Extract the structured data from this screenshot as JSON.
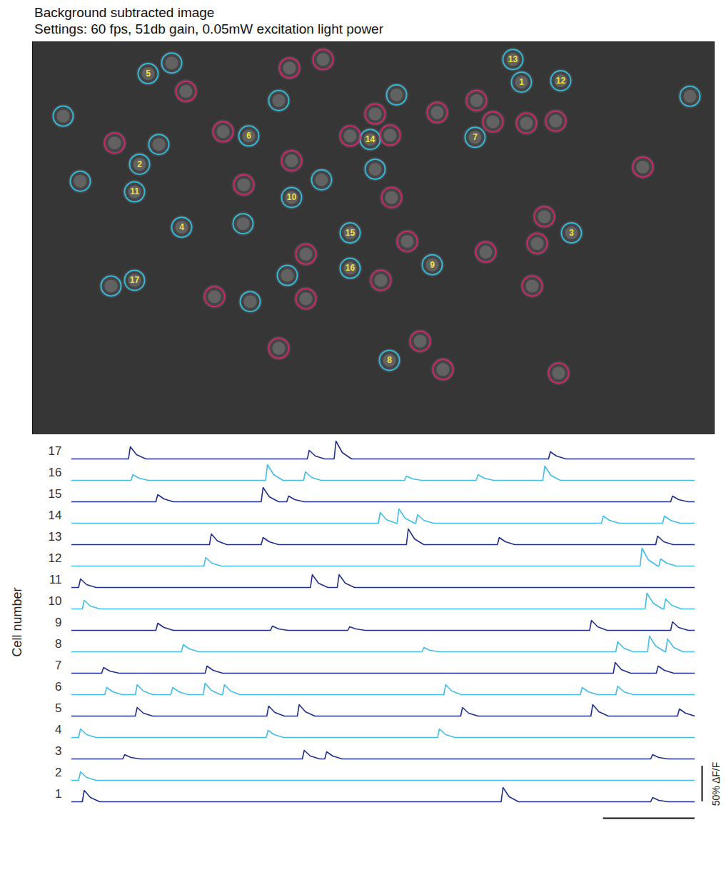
{
  "image": {
    "title": "Background subtracted image",
    "subtitle": "Settings: 60 fps, 51db gain, 0.05mW excitation light power",
    "xlim": [
      0,
      955
    ],
    "ylim": [
      0,
      555
    ],
    "roi_groups": [
      {
        "color": "#35b8d8",
        "x": [
          685,
          150,
          755,
          209,
          162,
          303,
          620,
          500,
          560,
          363,
          143,
          740,
          673,
          473,
          445,
          445,
          143,
          195,
          43,
          345,
          510,
          177,
          67,
          405,
          480,
          295,
          357,
          110,
          305,
          921
        ],
        "y": [
          57,
          173,
          270,
          262,
          45,
          133,
          135,
          450,
          315,
          220,
          212,
          55,
          25,
          138,
          270,
          320,
          337,
          30,
          105,
          83,
          75,
          145,
          197,
          195,
          180,
          257,
          330,
          345,
          367,
          77
        ],
        "labels": [
          "1",
          "2",
          "3",
          "4",
          "5",
          "6",
          "7",
          "8",
          "9",
          "10",
          "11",
          "12",
          "13",
          "14",
          "15",
          "16",
          "17",
          null,
          null,
          null,
          null,
          null,
          null,
          null,
          null,
          null,
          null,
          null,
          null,
          null
        ]
      },
      {
        "color": "#d0286c",
        "x": [
          215,
          360,
          407,
          267,
          115,
          445,
          480,
          501,
          567,
          622,
          645,
          692,
          733,
          855,
          363,
          296,
          503,
          717,
          707,
          635,
          525,
          383,
          488,
          383,
          255,
          700,
          345,
          543,
          575,
          737
        ],
        "y": [
          70,
          37,
          25,
          127,
          143,
          133,
          102,
          132,
          100,
          83,
          113,
          115,
          112,
          177,
          168,
          202,
          220,
          247,
          285,
          297,
          282,
          300,
          337,
          363,
          360,
          345,
          433,
          423,
          463,
          468
        ],
        "labels": [
          null,
          null,
          null,
          null,
          null,
          null,
          null,
          null,
          null,
          null,
          null,
          null,
          null,
          null,
          null,
          null,
          null,
          null,
          null,
          null,
          null,
          null,
          null,
          null,
          null,
          null,
          null,
          null,
          null,
          null
        ]
      }
    ]
  },
  "chart_data": {
    "type": "line",
    "ylabel": "Cell number",
    "xlim": [
      0,
      100
    ],
    "ylim": [
      -4,
      26
    ],
    "tick_labels": false,
    "scale_bars": {
      "x": {
        "from": 85.3,
        "to": 100
      },
      "y": {
        "value": 50,
        "label": "50% ΔF/F"
      }
    },
    "series": [
      {
        "name": "17",
        "color": "#1f2e8f",
        "x": [
          0,
          9.1,
          9.4,
          10.4,
          11.9,
          37.8,
          38.1,
          39.1,
          40.6,
          42.1,
          42.4,
          43.4,
          44.9,
          76.5,
          76.8,
          77.8,
          79.3,
          100
        ],
        "values": [
          0,
          0,
          17,
          6,
          0,
          0,
          12,
          4,
          0,
          0,
          25,
          9,
          0,
          0,
          10,
          4,
          0,
          0
        ]
      },
      {
        "name": "16",
        "color": "#40bde8",
        "x": [
          0,
          9.5,
          9.8,
          10.8,
          12.3,
          31.1,
          31.4,
          32.4,
          33.9,
          37.2,
          37.5,
          38.5,
          40.0,
          53.4,
          53.7,
          54.7,
          56.2,
          64.9,
          65.2,
          66.2,
          67.7,
          75.6,
          75.9,
          76.9,
          78.4,
          100
        ],
        "values": [
          0,
          0,
          8,
          3,
          0,
          0,
          22,
          8,
          0,
          0,
          12,
          4,
          0,
          0,
          6,
          2,
          0,
          0,
          8,
          3,
          0,
          0,
          20,
          7,
          0,
          0
        ]
      },
      {
        "name": "15",
        "color": "#1f2e8f",
        "x": [
          0,
          13.5,
          13.8,
          14.8,
          16.3,
          30.4,
          30.7,
          31.7,
          33.2,
          34.5,
          34.8,
          35.8,
          37.3,
          96.1,
          96.4,
          97.4,
          98.9,
          100
        ],
        "values": [
          0,
          0,
          10,
          4,
          0,
          0,
          20,
          7,
          0,
          0,
          8,
          3,
          0,
          0,
          8,
          3,
          0,
          0
        ]
      },
      {
        "name": "14",
        "color": "#40bde8",
        "x": [
          0,
          49.2,
          49.5,
          50.5,
          52.0,
          52.2,
          52.5,
          53.5,
          55.0,
          55.2,
          55.5,
          56.5,
          58.0,
          85.0,
          85.3,
          86.3,
          87.8,
          94.8,
          95.1,
          96.1,
          97.6,
          100
        ],
        "values": [
          0,
          0,
          15,
          5,
          0,
          0,
          20,
          7,
          0,
          0,
          12,
          4,
          0,
          0,
          10,
          4,
          0,
          0,
          10,
          4,
          0,
          0
        ]
      },
      {
        "name": "13",
        "color": "#1f2e8f",
        "x": [
          0,
          22.1,
          22.4,
          23.4,
          24.9,
          30.4,
          30.7,
          31.7,
          33.2,
          53.7,
          54.0,
          55.0,
          56.5,
          68.3,
          68.6,
          69.6,
          71.1,
          93.7,
          94.0,
          95.0,
          96.5,
          100
        ],
        "values": [
          0,
          0,
          15,
          5,
          0,
          0,
          10,
          4,
          0,
          0,
          22,
          8,
          0,
          0,
          10,
          4,
          0,
          0,
          12,
          4,
          0,
          0
        ]
      },
      {
        "name": "12",
        "color": "#40bde8",
        "x": [
          0,
          21.2,
          21.5,
          22.5,
          24.0,
          91.2,
          91.5,
          92.5,
          94.0,
          94.2,
          94.5,
          95.5,
          97.0,
          100
        ],
        "values": [
          0,
          0,
          12,
          4,
          0,
          0,
          25,
          9,
          0,
          0,
          10,
          4,
          0,
          0
        ]
      },
      {
        "name": "11",
        "color": "#1f2e8f",
        "x": [
          0,
          1.1,
          1.4,
          2.4,
          3.9,
          38.3,
          38.6,
          39.6,
          41.1,
          42.6,
          42.9,
          43.9,
          45.4,
          100
        ],
        "values": [
          0,
          0,
          12,
          4,
          0,
          0,
          18,
          6,
          0,
          0,
          18,
          6,
          0,
          0
        ]
      },
      {
        "name": "10",
        "color": "#40bde8",
        "x": [
          0,
          1.7,
          2.0,
          3.0,
          4.5,
          92.0,
          92.3,
          93.3,
          94.8,
          95.0,
          95.3,
          96.3,
          97.8,
          100
        ],
        "values": [
          0,
          0,
          12,
          4,
          0,
          0,
          22,
          8,
          0,
          0,
          14,
          5,
          0,
          0
        ]
      },
      {
        "name": "9",
        "color": "#1f2e8f",
        "x": [
          0,
          13.5,
          13.8,
          14.8,
          16.3,
          31.9,
          32.2,
          33.2,
          34.7,
          44.3,
          44.6,
          45.6,
          47.1,
          83.1,
          83.4,
          84.4,
          85.9,
          96.1,
          96.4,
          97.4,
          98.9,
          100
        ],
        "values": [
          0,
          0,
          10,
          4,
          0,
          0,
          6,
          2,
          0,
          0,
          5,
          2,
          0,
          0,
          14,
          5,
          0,
          0,
          12,
          4,
          0,
          0
        ]
      },
      {
        "name": "8",
        "color": "#40bde8",
        "x": [
          0,
          17.6,
          17.9,
          18.9,
          20.4,
          56.2,
          56.5,
          57.5,
          59.0,
          87.3,
          87.6,
          88.6,
          90.1,
          92.4,
          92.7,
          93.7,
          95.2,
          95.3,
          95.6,
          96.6,
          98.1,
          100
        ],
        "values": [
          0,
          0,
          10,
          4,
          0,
          0,
          6,
          2,
          0,
          0,
          14,
          5,
          0,
          0,
          22,
          8,
          0,
          0,
          18,
          6,
          0,
          0
        ]
      },
      {
        "name": "7",
        "color": "#1f2e8f",
        "x": [
          0,
          4.8,
          5.1,
          6.1,
          7.6,
          21.4,
          21.7,
          22.7,
          24.2,
          86.9,
          87.2,
          88.2,
          89.7,
          93.8,
          94.1,
          95.1,
          96.6,
          100
        ],
        "values": [
          0,
          0,
          8,
          3,
          0,
          0,
          10,
          4,
          0,
          0,
          15,
          5,
          0,
          0,
          10,
          4,
          0,
          0
        ]
      },
      {
        "name": "6",
        "color": "#40bde8",
        "x": [
          0,
          5.3,
          5.6,
          6.6,
          8.1,
          10.2,
          10.5,
          11.5,
          13.0,
          15.9,
          16.2,
          17.2,
          18.7,
          21.1,
          21.4,
          22.4,
          23.9,
          24.2,
          24.5,
          25.5,
          27.0,
          59.7,
          60.0,
          61.0,
          62.5,
          81.6,
          81.9,
          82.9,
          84.4,
          87.3,
          87.6,
          88.6,
          90.1,
          100
        ],
        "values": [
          0,
          0,
          10,
          4,
          0,
          0,
          14,
          5,
          0,
          0,
          10,
          4,
          0,
          0,
          16,
          6,
          0,
          0,
          14,
          5,
          0,
          0,
          14,
          5,
          0,
          0,
          10,
          4,
          0,
          0,
          12,
          4,
          0,
          0
        ]
      },
      {
        "name": "5",
        "color": "#1f2e8f",
        "x": [
          0,
          10.2,
          10.5,
          11.5,
          13.0,
          31.3,
          31.6,
          32.6,
          34.1,
          36.2,
          36.5,
          37.5,
          39.0,
          62.4,
          62.7,
          63.7,
          65.2,
          83.3,
          83.6,
          84.6,
          86.1,
          97.2,
          97.5,
          98.5,
          100
        ],
        "values": [
          0,
          0,
          12,
          4,
          0,
          0,
          14,
          5,
          0,
          0,
          16,
          6,
          0,
          0,
          12,
          4,
          0,
          0,
          16,
          6,
          0,
          0,
          10,
          4,
          0
        ]
      },
      {
        "name": "4",
        "color": "#40bde8",
        "x": [
          0,
          1.1,
          1.4,
          2.4,
          3.9,
          31.2,
          31.5,
          32.5,
          34.0,
          58.7,
          59.0,
          60.0,
          61.5,
          100
        ],
        "values": [
          0,
          0,
          12,
          4,
          0,
          0,
          10,
          4,
          0,
          0,
          12,
          4,
          0,
          0
        ]
      },
      {
        "name": "3",
        "color": "#1f2e8f",
        "x": [
          0,
          8.2,
          8.5,
          9.5,
          11.0,
          37.0,
          37.3,
          38.3,
          39.8,
          40.6,
          40.9,
          41.9,
          43.4,
          92.9,
          93.2,
          94.2,
          95.7,
          100
        ],
        "values": [
          0,
          0,
          6,
          2,
          0,
          0,
          12,
          4,
          0,
          0,
          10,
          4,
          0,
          0,
          6,
          2,
          0,
          0
        ]
      },
      {
        "name": "2",
        "color": "#40bde8",
        "x": [
          0,
          1.1,
          1.4,
          2.4,
          3.9,
          100
        ],
        "values": [
          0,
          0,
          12,
          4,
          0,
          0
        ]
      },
      {
        "name": "1",
        "color": "#1f2e8f",
        "x": [
          0,
          1.7,
          2.0,
          3.0,
          4.5,
          68.9,
          69.2,
          70.2,
          71.7,
          92.9,
          93.2,
          94.2,
          95.7,
          100
        ],
        "values": [
          0,
          0,
          16,
          6,
          0,
          0,
          20,
          7,
          0,
          0,
          6,
          2,
          0,
          0
        ]
      }
    ]
  }
}
